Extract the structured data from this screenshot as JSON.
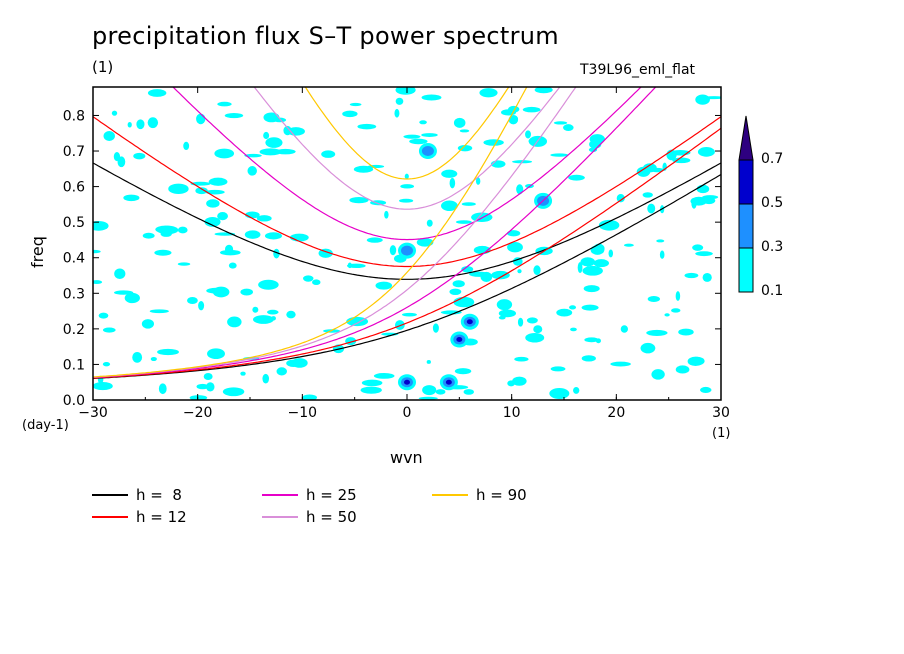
{
  "chart_data": {
    "type": "heatmap",
    "title": "precipitation flux S–T power spectrum",
    "subtitle": "(1)",
    "run_label": "T39L96_eml_flat",
    "xlabel": "wvn",
    "ylabel": "freq",
    "x_unit": "(1)",
    "y_unit": "(day-1)",
    "xlim": [
      -30,
      30
    ],
    "ylim": [
      0,
      0.88
    ],
    "xticks": [
      "-30",
      "-20",
      "-10",
      "0",
      "10",
      "20",
      "30"
    ],
    "yticks": [
      "0.0",
      "0.1",
      "0.2",
      "0.3",
      "0.4",
      "0.5",
      "0.6",
      "0.7",
      "0.8"
    ],
    "colorbar": {
      "levels": [
        "0.1",
        "0.3",
        "0.5",
        "0.7"
      ],
      "colors": [
        "#00ffff",
        "#1e90ff",
        "#0000cd",
        "#2e0080"
      ]
    },
    "background_field": {
      "description_level": "sparse speckled contours of power >= 0.1 across the domain",
      "max_blobs": [
        {
          "wvn": 0,
          "freq": 0.05,
          "level": 0.5
        },
        {
          "wvn": 4,
          "freq": 0.05,
          "level": 0.5
        },
        {
          "wvn": 5,
          "freq": 0.17,
          "level": 0.5
        },
        {
          "wvn": 6,
          "freq": 0.22,
          "level": 0.5
        },
        {
          "wvn": 2,
          "freq": 0.7,
          "level": 0.3
        },
        {
          "wvn": 0,
          "freq": 0.42,
          "level": 0.3
        },
        {
          "wvn": 13,
          "freq": 0.56,
          "level": 0.3
        }
      ]
    },
    "series": [
      {
        "name": "h =  8",
        "color": "#000000",
        "h": 8
      },
      {
        "name": "h = 12",
        "color": "#ff0000",
        "h": 12
      },
      {
        "name": "h = 25",
        "color": "#e600c8",
        "h": 25
      },
      {
        "name": "h = 50",
        "color": "#d98fd9",
        "h": 50
      },
      {
        "name": "h = 90",
        "color": "#ffc800",
        "h": 90
      }
    ]
  }
}
